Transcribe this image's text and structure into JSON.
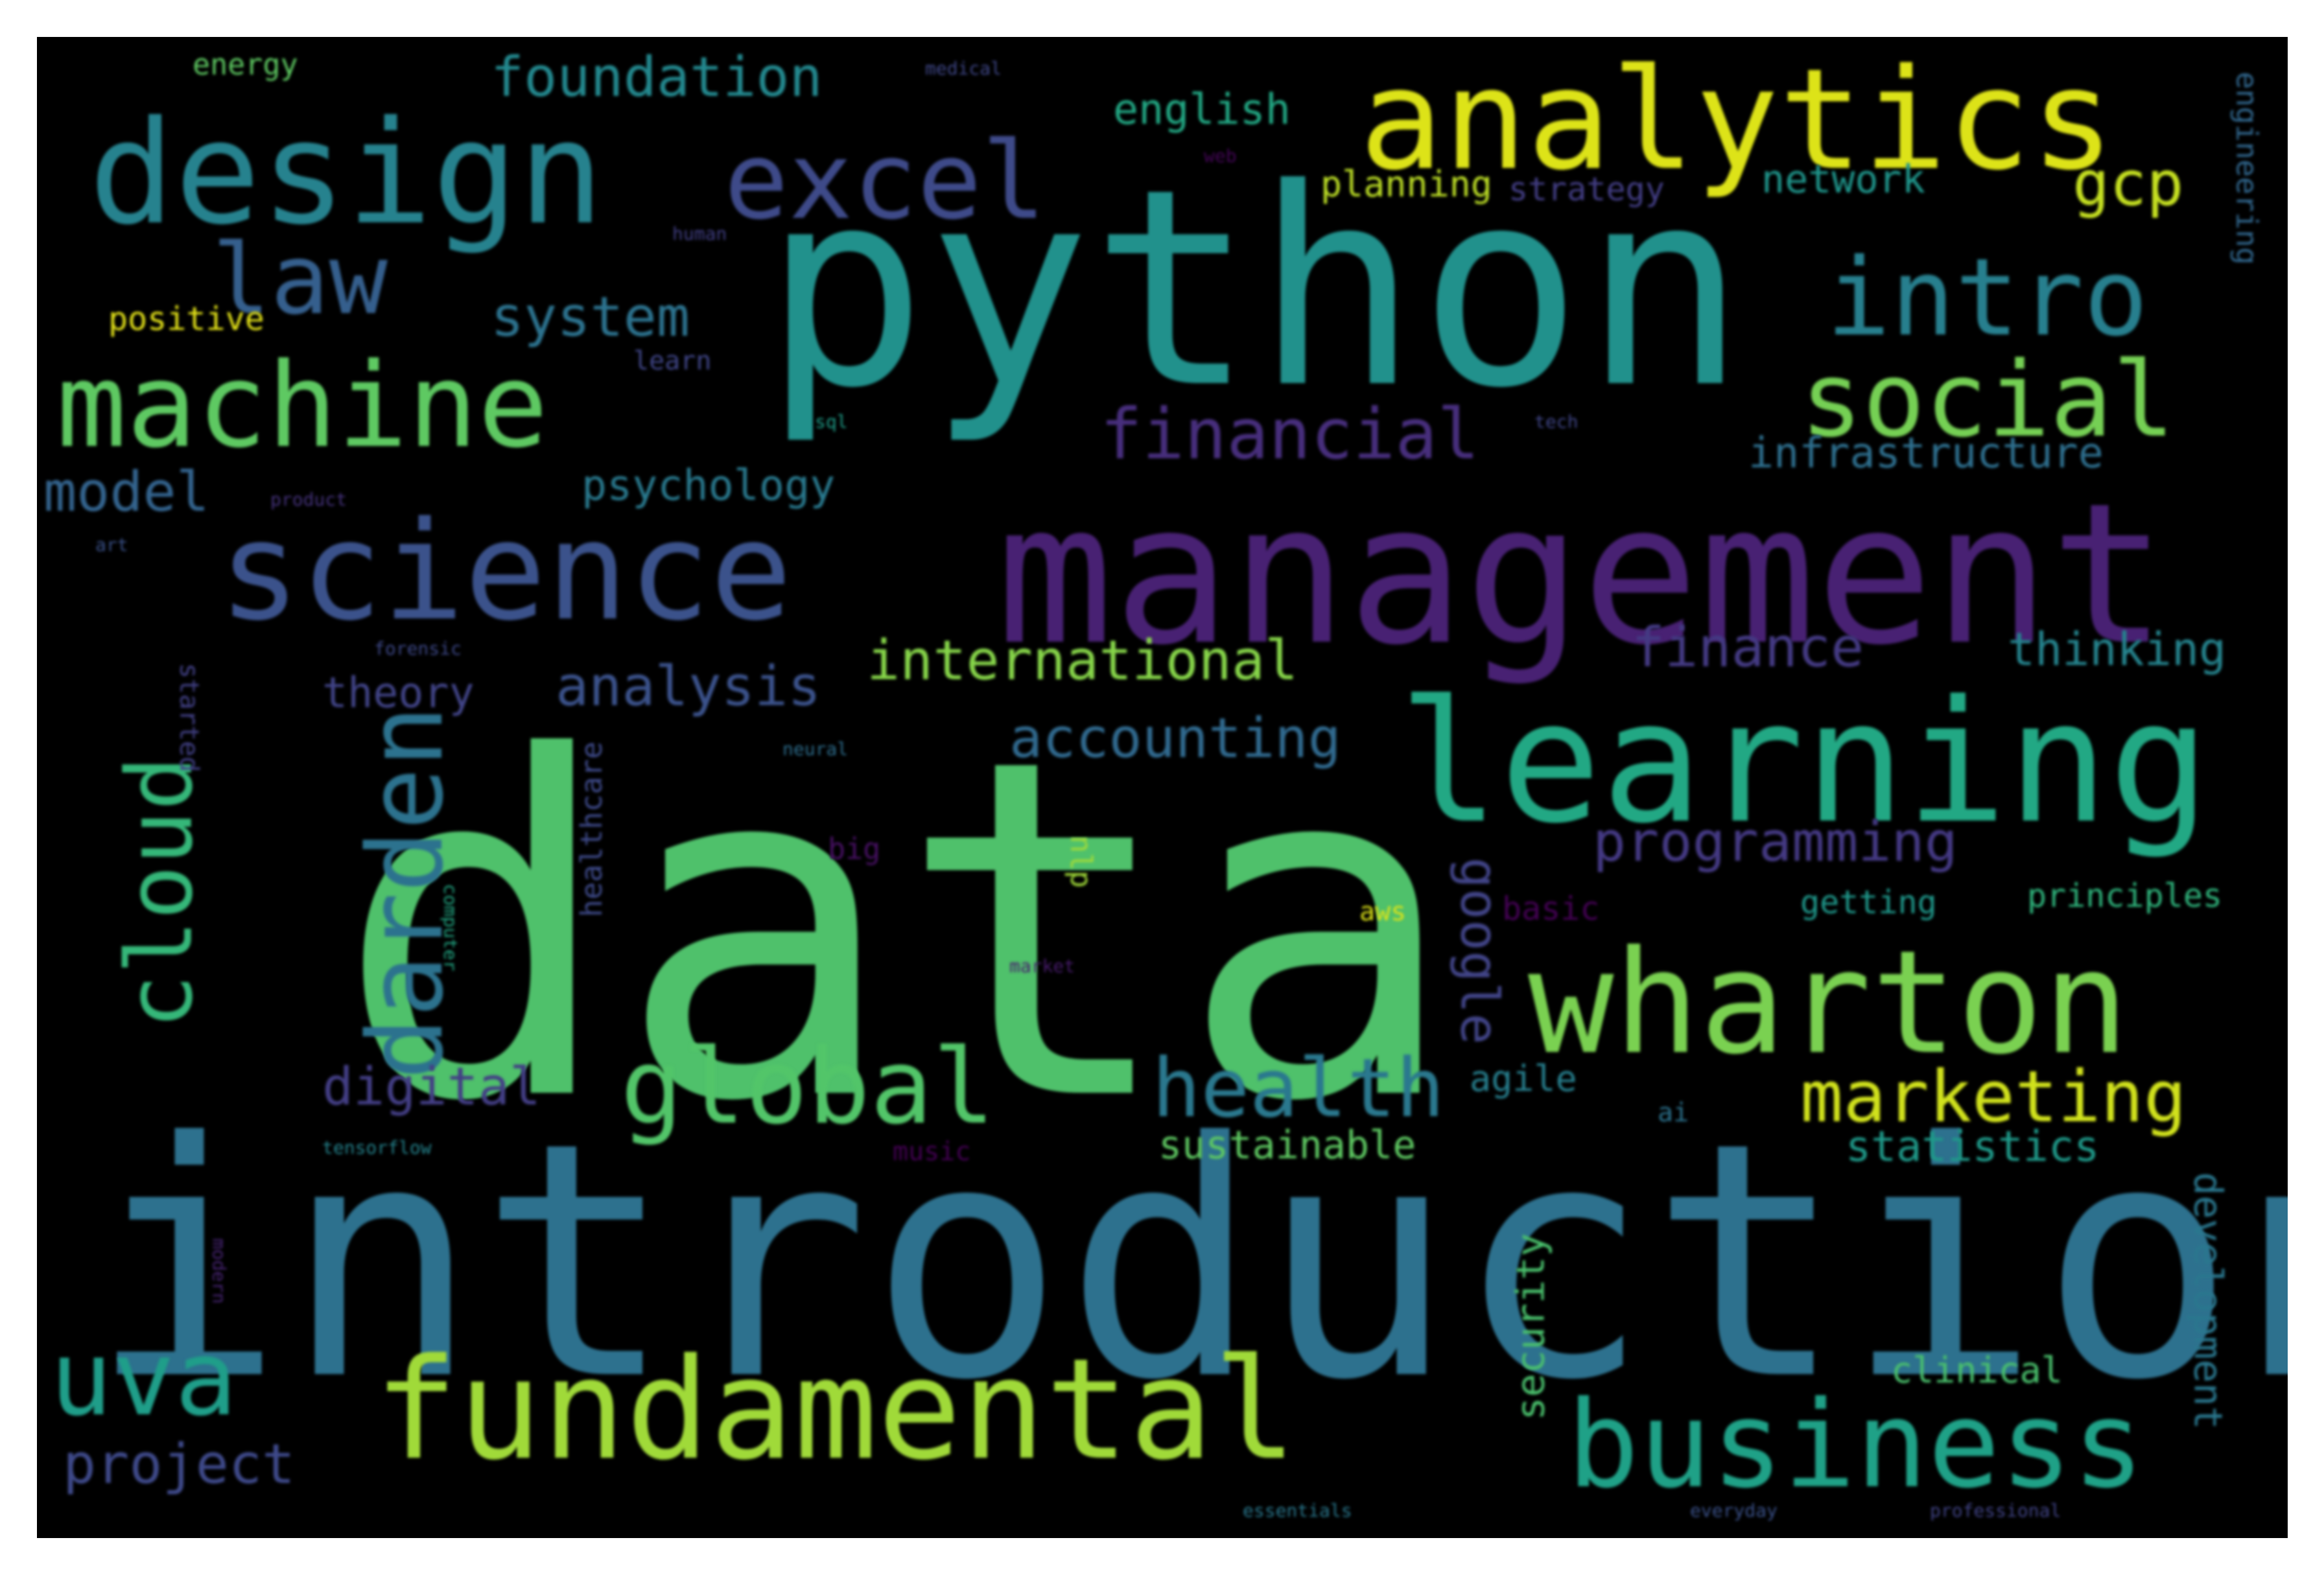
{
  "panel_color": "#000000",
  "words": [
    {
      "text": "data",
      "color": "#4fc16b"
    },
    {
      "text": "introduction",
      "color": "#2d718e"
    },
    {
      "text": "python",
      "color": "#21918c"
    },
    {
      "text": "management",
      "color": "#482173"
    },
    {
      "text": "learning",
      "color": "#22a884"
    },
    {
      "text": "analytics",
      "color": "#dde318"
    },
    {
      "text": "design",
      "color": "#26828e"
    },
    {
      "text": "wharton",
      "color": "#7ad151"
    },
    {
      "text": "fundamental",
      "color": "#a0da39"
    },
    {
      "text": "business",
      "color": "#1fa187"
    },
    {
      "text": "science",
      "color": "#3b528b"
    },
    {
      "text": "machine",
      "color": "#5ec962"
    },
    {
      "text": "excel",
      "color": "#3e4a89"
    },
    {
      "text": "intro",
      "color": "#277f8e"
    },
    {
      "text": "social",
      "color": "#75d054"
    },
    {
      "text": "darden",
      "color": "#2c728e"
    },
    {
      "text": "cloud",
      "color": "#35b779"
    },
    {
      "text": "global",
      "color": "#52c569"
    },
    {
      "text": "uva",
      "color": "#1f9e89"
    },
    {
      "text": "law",
      "color": "#355f8d"
    },
    {
      "text": "health",
      "color": "#2a788e"
    },
    {
      "text": "marketing",
      "color": "#d0e11c"
    },
    {
      "text": "financial",
      "color": "#472e7c"
    },
    {
      "text": "foundation",
      "color": "#23888e"
    },
    {
      "text": "system",
      "color": "#2c728e"
    },
    {
      "text": "model",
      "color": "#33638d"
    },
    {
      "text": "analysis",
      "color": "#3b528b"
    },
    {
      "text": "international",
      "color": "#86d549"
    },
    {
      "text": "accounting",
      "color": "#30698e"
    },
    {
      "text": "finance",
      "color": "#443a83"
    },
    {
      "text": "thinking",
      "color": "#25848e"
    },
    {
      "text": "programming",
      "color": "#443983"
    },
    {
      "text": "digital",
      "color": "#433e85"
    },
    {
      "text": "project",
      "color": "#3e4989"
    },
    {
      "text": "google",
      "color": "#414487"
    },
    {
      "text": "gcp",
      "color": "#c5e021"
    },
    {
      "text": "english",
      "color": "#22a884"
    },
    {
      "text": "psychology",
      "color": "#29798e"
    },
    {
      "text": "infrastructure",
      "color": "#2e6f8e"
    },
    {
      "text": "statistics",
      "color": "#1f9a8a"
    },
    {
      "text": "theory",
      "color": "#414487"
    },
    {
      "text": "network",
      "color": "#1f958b"
    },
    {
      "text": "planning",
      "color": "#bddf26"
    },
    {
      "text": "strategy",
      "color": "#433e85"
    },
    {
      "text": "sustainable",
      "color": "#5ec962"
    },
    {
      "text": "security",
      "color": "#4ac16d"
    },
    {
      "text": "development",
      "color": "#2a778e"
    },
    {
      "text": "clinical",
      "color": "#4ac16d"
    },
    {
      "text": "principles",
      "color": "#2fb47c"
    },
    {
      "text": "getting",
      "color": "#1f988b"
    },
    {
      "text": "agile",
      "color": "#277f8e"
    },
    {
      "text": "basic",
      "color": "#440154"
    },
    {
      "text": "aws",
      "color": "#dde318"
    },
    {
      "text": "ai",
      "color": "#2c728e"
    },
    {
      "text": "positive",
      "color": "#e5e419"
    },
    {
      "text": "energy",
      "color": "#5ec962"
    },
    {
      "text": "engineering",
      "color": "#31678e"
    },
    {
      "text": "healthcare",
      "color": "#3e4a89"
    },
    {
      "text": "started",
      "color": "#424186"
    },
    {
      "text": "nlp",
      "color": "#a0da39"
    },
    {
      "text": "big",
      "color": "#471063"
    },
    {
      "text": "music",
      "color": "#440154"
    },
    {
      "text": "learn",
      "color": "#404688"
    },
    {
      "text": "medical",
      "color": "#3f4788"
    },
    {
      "text": "human",
      "color": "#424086"
    },
    {
      "text": "tech",
      "color": "#404688"
    },
    {
      "text": "product",
      "color": "#46337e"
    },
    {
      "text": "sql",
      "color": "#1f9e89"
    },
    {
      "text": "art",
      "color": "#3b528b"
    },
    {
      "text": "forensic",
      "color": "#3e4989"
    },
    {
      "text": "neural",
      "color": "#2e6e8e"
    },
    {
      "text": "computer",
      "color": "#22a884"
    },
    {
      "text": "market",
      "color": "#481b6d"
    },
    {
      "text": "tensorflow",
      "color": "#25848e"
    },
    {
      "text": "modern",
      "color": "#482475"
    },
    {
      "text": "essentials",
      "color": "#2a788e"
    },
    {
      "text": "everyday",
      "color": "#3b528b"
    },
    {
      "text": "professional",
      "color": "#414487"
    },
    {
      "text": "web",
      "color": "#450559"
    }
  ]
}
